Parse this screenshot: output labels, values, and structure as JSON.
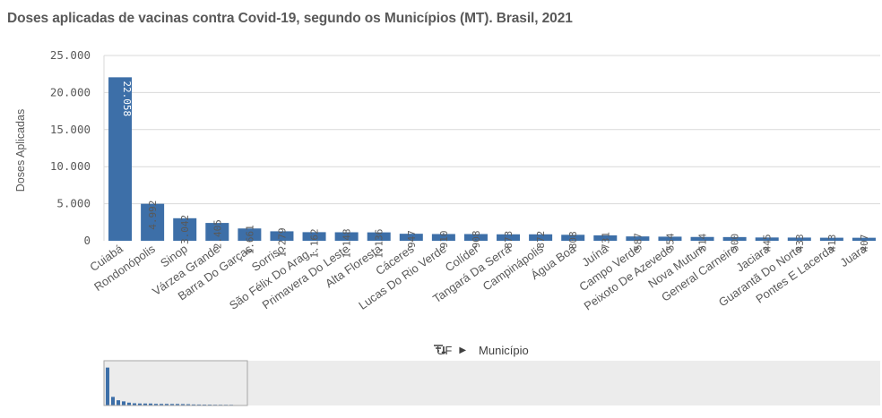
{
  "title": "Doses aplicadas de vacinas contra Covid-19, segundo os Municípios (MT). Brasil, 2021",
  "drill": {
    "dim1": "UF",
    "dim2": "Município",
    "drill_icon": "drill-down-icon",
    "arrow_icon": "play-arrow-icon"
  },
  "colors": {
    "bar": "#3d6fa8",
    "grid": "#d9d9d9",
    "scrollbar_bg": "#ececec"
  },
  "chart_data": {
    "type": "bar",
    "title": "Doses aplicadas de vacinas contra Covid-19, segundo os Municípios (MT). Brasil, 2021",
    "xlabel": "",
    "ylabel": "Doses Aplicadas",
    "ylim": [
      0,
      25000
    ],
    "yticks": [
      0,
      5000,
      10000,
      15000,
      20000,
      25000
    ],
    "ytick_labels": [
      "0",
      "5.000",
      "10.000",
      "15.000",
      "20.000",
      "25.000"
    ],
    "grid": true,
    "categories": [
      "Cuiabá",
      "Rondonópolis",
      "Sinop",
      "Várzea Grande",
      "Barra Do Garças",
      "Sorriso",
      "São Félix Do Arag...",
      "Primavera Do Leste",
      "Alta Floresta",
      "Cáceres",
      "Lucas Do Rio Verde",
      "Colíder",
      "Tangará Da Serra",
      "Campinápolis",
      "Água Boa",
      "Juína",
      "Campo Verde",
      "Peixoto De Azevedo",
      "Nova Mutum",
      "General Carneiro",
      "Jaciara",
      "Guarantã Do Norte",
      "Pontes E Lacerda",
      "Juara"
    ],
    "values": [
      22058,
      4992,
      3042,
      2405,
      1661,
      1279,
      1162,
      1148,
      1136,
      947,
      910,
      908,
      873,
      872,
      808,
      731,
      587,
      554,
      514,
      500,
      445,
      433,
      413,
      407
    ],
    "value_labels": [
      "22.058",
      "4.992",
      "3.042",
      "2.405",
      "1.661",
      "1.279",
      "1.162",
      "1.148",
      "1.136",
      "947",
      "910",
      "908",
      "873",
      "872",
      "808",
      "731",
      "587",
      "554",
      "514",
      "500",
      "445",
      "433",
      "413",
      "407"
    ]
  }
}
